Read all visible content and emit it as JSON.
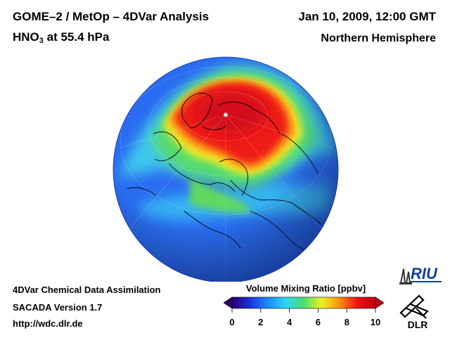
{
  "header": {
    "title_line1": "GOME–2 / MetOp – 4DVar Analysis",
    "species": "HNO",
    "species_subscript": "3",
    "level_text": " at 55.4 hPa",
    "date": "Jan 10, 2009, 12:00 GMT",
    "region": "Northern Hemisphere"
  },
  "footer": {
    "line1": "4DVar Chemical Data Assimilation",
    "line2": "SACADA Version 1.7",
    "line3": "http://wdc.dlr.de"
  },
  "colorbar": {
    "title": "Volume Mixing Ratio [ppbv]",
    "ticks": [
      "0",
      "2",
      "4",
      "6",
      "8",
      "10"
    ],
    "colors": [
      "#2a0070",
      "#1a30e0",
      "#1a8cff",
      "#2ad8f0",
      "#48e070",
      "#f0f020",
      "#ff9010",
      "#f01010",
      "#c00010"
    ]
  },
  "logos": {
    "riu": "RIU",
    "dlr": "DLR"
  },
  "map": {
    "projection": "orthographic",
    "hemisphere": "Northern Hemisphere",
    "background_color": "#2a6cf0",
    "high_value_color": "#f01818"
  }
}
